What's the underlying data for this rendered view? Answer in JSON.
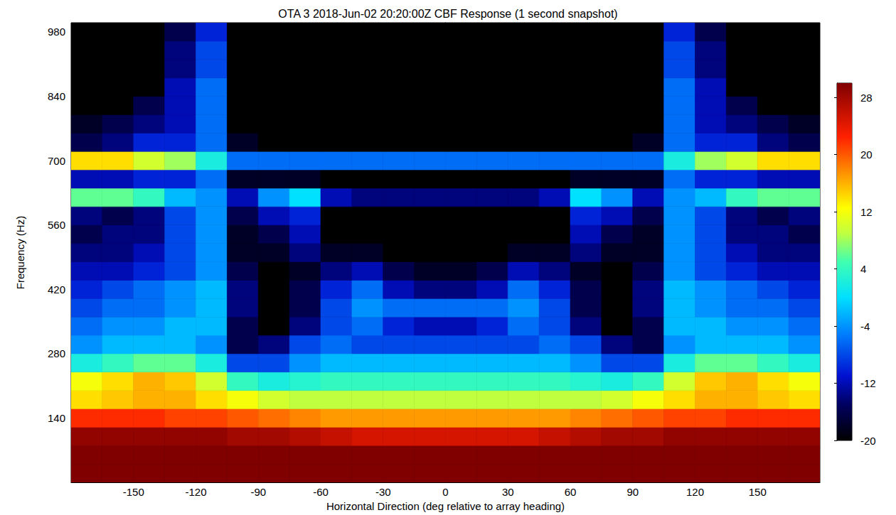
{
  "chart_data": {
    "type": "heatmap",
    "title": "OTA 3 2018-Jun-02 20:20:00Z CBF Response (1 second snapshot)",
    "x_label": "Horizontal Direction (deg relative to array heading)",
    "y_label": "Frequency (Hz)",
    "xlim": [
      -180,
      180
    ],
    "xticks": [
      -150,
      -120,
      -90,
      -60,
      -30,
      0,
      30,
      60,
      90,
      120,
      150
    ],
    "ylim": [
      0,
      1000
    ],
    "yticks": [
      140,
      280,
      420,
      560,
      700,
      840,
      980
    ],
    "x_edges": [
      -180,
      -165,
      -150,
      -135,
      -120,
      -105,
      -90,
      -75,
      -60,
      -45,
      -30,
      -15,
      0,
      15,
      30,
      45,
      60,
      75,
      90,
      105,
      120,
      135,
      150,
      165,
      180
    ],
    "y_edges": [
      0,
      40,
      80,
      120,
      160,
      200,
      240,
      280,
      320,
      360,
      400,
      440,
      480,
      520,
      560,
      600,
      640,
      680,
      720,
      760,
      800,
      840,
      880,
      920,
      960,
      1000
    ],
    "values": [
      [
        30,
        30,
        30,
        30,
        30,
        30,
        30,
        30,
        30,
        30,
        30,
        30,
        30,
        30,
        30,
        30,
        30,
        30,
        30,
        30,
        30,
        30,
        30,
        30
      ],
      [
        30,
        30,
        30,
        30,
        30,
        30,
        30,
        30,
        30,
        30,
        30,
        30,
        30,
        30,
        30,
        30,
        30,
        30,
        30,
        30,
        30,
        30,
        30,
        30
      ],
      [
        29,
        29,
        29,
        29,
        29,
        28,
        28,
        27,
        26,
        25,
        25,
        25,
        25,
        25,
        25,
        26,
        27,
        28,
        28,
        29,
        29,
        29,
        29,
        29
      ],
      [
        22,
        22,
        22,
        21,
        21,
        20,
        19,
        18,
        17,
        17,
        17,
        17,
        17,
        17,
        17,
        17,
        18,
        19,
        20,
        21,
        21,
        22,
        22,
        22
      ],
      [
        14,
        15,
        16,
        16,
        14,
        12,
        10,
        9,
        9,
        9,
        9,
        9,
        9,
        9,
        9,
        9,
        9,
        10,
        12,
        14,
        16,
        16,
        15,
        14
      ],
      [
        12,
        14,
        16,
        15,
        10,
        4,
        2,
        3,
        4,
        4,
        4,
        4,
        4,
        4,
        4,
        4,
        3,
        2,
        4,
        10,
        15,
        16,
        14,
        12
      ],
      [
        2,
        4,
        6,
        6,
        2,
        -8,
        -8,
        -4,
        -2,
        -2,
        -2,
        -2,
        -2,
        -2,
        -2,
        -2,
        -4,
        -8,
        -8,
        2,
        6,
        6,
        4,
        2
      ],
      [
        -4,
        -2,
        -2,
        -2,
        -4,
        -16,
        -14,
        -8,
        -6,
        -8,
        -8,
        -8,
        -8,
        -8,
        -8,
        -6,
        -8,
        -14,
        -16,
        -4,
        -2,
        -2,
        -2,
        -4
      ],
      [
        -6,
        -4,
        -4,
        -2,
        -2,
        -16,
        -20,
        -14,
        -8,
        -6,
        -10,
        -12,
        -12,
        -10,
        -6,
        -8,
        -14,
        -20,
        -16,
        -2,
        -2,
        -4,
        -4,
        -6
      ],
      [
        -8,
        -6,
        -6,
        -4,
        -2,
        -14,
        -20,
        -16,
        -8,
        -4,
        -6,
        -6,
        -6,
        -6,
        -4,
        -8,
        -16,
        -20,
        -14,
        -2,
        -4,
        -6,
        -6,
        -8
      ],
      [
        -10,
        -8,
        -6,
        -4,
        -2,
        -14,
        -20,
        -16,
        -10,
        -6,
        -12,
        -14,
        -14,
        -12,
        -6,
        -10,
        -16,
        -20,
        -14,
        -2,
        -4,
        -6,
        -8,
        -10
      ],
      [
        -12,
        -12,
        -10,
        -8,
        -4,
        -16,
        -20,
        -18,
        -14,
        -12,
        -16,
        -18,
        -18,
        -16,
        -12,
        -14,
        -18,
        -20,
        -16,
        -4,
        -8,
        -10,
        -12,
        -12
      ],
      [
        -14,
        -14,
        -12,
        -8,
        -4,
        -18,
        -18,
        -14,
        -18,
        -18,
        -20,
        -20,
        -20,
        -20,
        -18,
        -18,
        -14,
        -18,
        -18,
        -4,
        -8,
        -12,
        -14,
        -14
      ],
      [
        -16,
        -14,
        -14,
        -8,
        -4,
        -18,
        -16,
        -12,
        -20,
        -20,
        -20,
        -20,
        -20,
        -20,
        -20,
        -20,
        -12,
        -16,
        -18,
        -4,
        -8,
        -14,
        -14,
        -16
      ],
      [
        -14,
        -16,
        -14,
        -8,
        -4,
        -16,
        -12,
        -10,
        -20,
        -20,
        -20,
        -20,
        -20,
        -20,
        -20,
        -20,
        -10,
        -12,
        -16,
        -4,
        -8,
        -14,
        -16,
        -14
      ],
      [
        6,
        6,
        4,
        -2,
        -4,
        -12,
        -4,
        0,
        -12,
        -14,
        -14,
        -14,
        -14,
        -14,
        -14,
        -12,
        0,
        -4,
        -12,
        -4,
        -2,
        4,
        6,
        6
      ],
      [
        -12,
        -12,
        -10,
        -10,
        -6,
        -18,
        -18,
        -18,
        -20,
        -20,
        -20,
        -20,
        -20,
        -20,
        -20,
        -20,
        -18,
        -18,
        -18,
        -6,
        -10,
        -10,
        -12,
        -12
      ],
      [
        14,
        14,
        10,
        8,
        2,
        -6,
        -6,
        -6,
        -6,
        -6,
        -6,
        -6,
        -6,
        -6,
        -6,
        -6,
        -6,
        -6,
        -6,
        2,
        8,
        10,
        14,
        14
      ],
      [
        -16,
        -14,
        -10,
        -10,
        -6,
        -18,
        -20,
        -20,
        -20,
        -20,
        -20,
        -20,
        -20,
        -20,
        -20,
        -20,
        -20,
        -20,
        -18,
        -6,
        -10,
        -10,
        -14,
        -16
      ],
      [
        -18,
        -16,
        -14,
        -12,
        -6,
        -20,
        -20,
        -20,
        -20,
        -20,
        -20,
        -20,
        -20,
        -20,
        -20,
        -20,
        -20,
        -20,
        -20,
        -6,
        -12,
        -14,
        -16,
        -18
      ],
      [
        -20,
        -20,
        -16,
        -12,
        -6,
        -20,
        -20,
        -20,
        -20,
        -20,
        -20,
        -20,
        -20,
        -20,
        -20,
        -20,
        -20,
        -20,
        -20,
        -6,
        -12,
        -16,
        -20,
        -20
      ],
      [
        -20,
        -20,
        -20,
        -12,
        -6,
        -20,
        -20,
        -20,
        -20,
        -20,
        -20,
        -20,
        -20,
        -20,
        -20,
        -20,
        -20,
        -20,
        -20,
        -6,
        -12,
        -20,
        -20,
        -20
      ],
      [
        -20,
        -20,
        -20,
        -14,
        -8,
        -20,
        -20,
        -20,
        -20,
        -20,
        -20,
        -20,
        -20,
        -20,
        -20,
        -20,
        -20,
        -20,
        -20,
        -8,
        -14,
        -20,
        -20,
        -20
      ],
      [
        -20,
        -20,
        -20,
        -14,
        -8,
        -20,
        -20,
        -20,
        -20,
        -20,
        -20,
        -20,
        -20,
        -20,
        -20,
        -20,
        -20,
        -20,
        -20,
        -8,
        -14,
        -20,
        -20,
        -20
      ],
      [
        -20,
        -20,
        -20,
        -16,
        -10,
        -20,
        -20,
        -20,
        -20,
        -20,
        -20,
        -20,
        -20,
        -20,
        -20,
        -20,
        -20,
        -20,
        -20,
        -10,
        -16,
        -20,
        -20,
        -20
      ]
    ],
    "colorbar": {
      "range": [
        -20,
        30
      ],
      "ticks": [
        -20,
        -12,
        -4,
        4,
        12,
        20,
        28
      ]
    }
  }
}
